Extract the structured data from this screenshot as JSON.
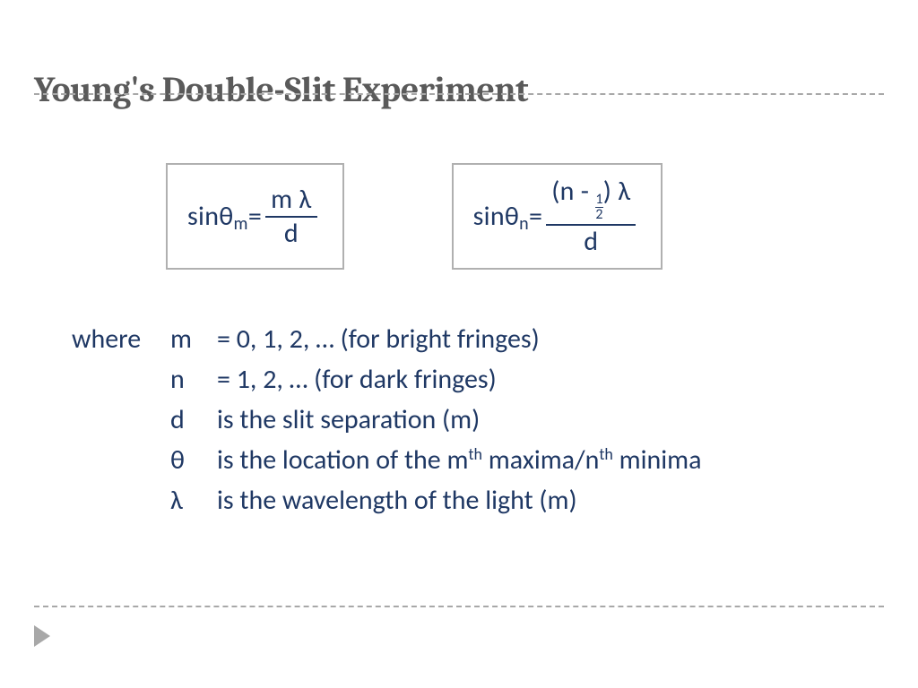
{
  "colors": {
    "title": "#5a5a5a",
    "ink": "#1f3864",
    "box_border": "#b0b0b0",
    "dash": "#a8a8a8",
    "bg": "#ffffff"
  },
  "fontsizes": {
    "title_pt": 40,
    "body_pt": 30,
    "sub_pt": 20,
    "sup_pt": 18
  },
  "title": "Young's Double-Slit Experiment",
  "eq_bright": {
    "lhs_sin": "sin",
    "lhs_sym": "θ",
    "lhs_sub": "m",
    "eq": " = ",
    "num": "m λ",
    "den": "d"
  },
  "eq_dark": {
    "lhs_sin": "sin",
    "lhs_sym": "θ",
    "lhs_sub": "n",
    "eq": " = ",
    "num_l": "(n - ",
    "num_half_top": "1",
    "num_half_bot": "2",
    "num_r": ") λ",
    "den": "d"
  },
  "defs": {
    "where": "where",
    "rows": [
      {
        "sym": "m",
        "desc": "= 0, 1, 2, …  (for bright fringes)"
      },
      {
        "sym": "n",
        "desc": "= 1, 2, …  (for dark fringes)"
      },
      {
        "sym": "d",
        "desc": "is the slit separation (m)"
      },
      {
        "sym": "θ",
        "desc_pre": "is the location of the m",
        "sup1": "th",
        "desc_mid": " maxima/n",
        "sup2": "th",
        "desc_post": " minima"
      },
      {
        "sym": "λ",
        "desc": "is the wavelength of the light (m)"
      }
    ]
  }
}
